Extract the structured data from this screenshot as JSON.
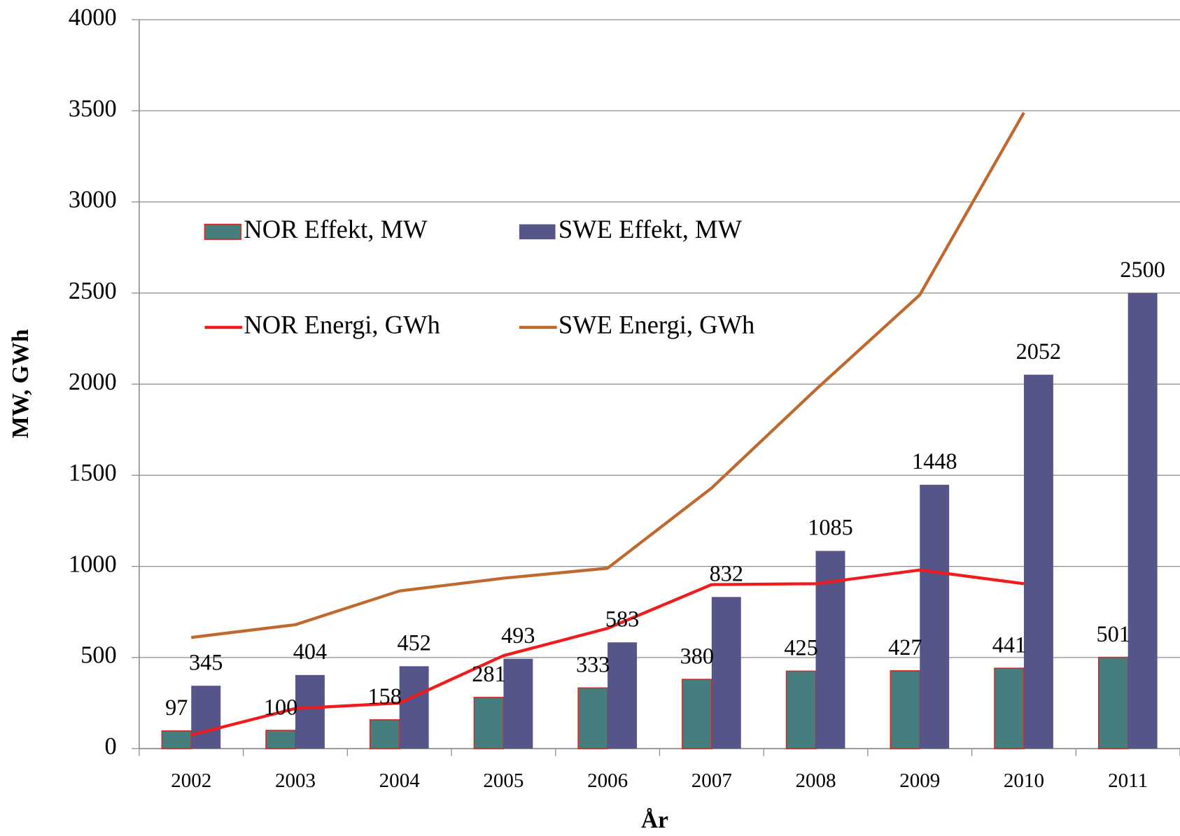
{
  "chart_data": {
    "type": "bar",
    "xlabel": "År",
    "ylabel": "MW, GWh",
    "categories": [
      "2002",
      "2003",
      "2004",
      "2005",
      "2006",
      "2007",
      "2008",
      "2009",
      "2010",
      "2011"
    ],
    "series": [
      {
        "name": "NOR Effekt, MW",
        "type": "bar",
        "color": "#467e80",
        "edgecolor": "#d42a1f",
        "values": [
          97,
          100,
          158,
          281,
          333,
          380,
          425,
          427,
          441,
          501
        ]
      },
      {
        "name": "SWE Effekt, MW",
        "type": "bar",
        "color": "#55558a",
        "values": [
          345,
          404,
          452,
          493,
          583,
          832,
          1085,
          1448,
          2052,
          2500
        ]
      },
      {
        "name": "NOR Energi, GWh",
        "type": "line",
        "color": "#ee1c1c",
        "values": [
          75,
          220,
          250,
          510,
          660,
          900,
          905,
          980,
          905,
          null
        ]
      },
      {
        "name": "SWE Energi, GWh",
        "type": "line",
        "color": "#c0692f",
        "values": [
          610,
          680,
          865,
          935,
          990,
          1430,
          1970,
          2490,
          3490,
          null
        ]
      }
    ],
    "ylim": [
      0,
      4000
    ],
    "yticks": [
      0,
      500,
      1000,
      1500,
      2000,
      2500,
      3000,
      3500,
      4000
    ],
    "grid": true,
    "legend": "upper left"
  }
}
